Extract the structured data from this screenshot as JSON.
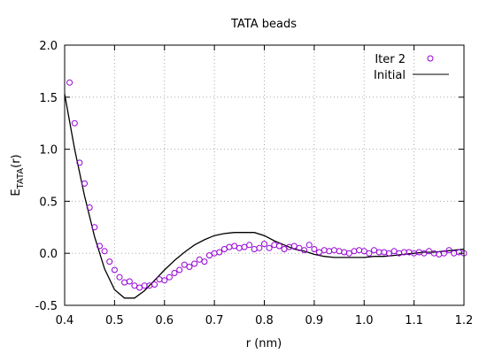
{
  "chart_data": {
    "type": "line",
    "title": "TATA beads",
    "xlabel": "r (nm)",
    "ylabel": {
      "main": "E",
      "sub": "TATA",
      "suffix": "(r)"
    },
    "xlim": [
      0.4,
      1.2
    ],
    "ylim": [
      -0.5,
      2.0
    ],
    "xticks": [
      "0.4",
      "0.5",
      "0.6",
      "0.7",
      "0.8",
      "0.9",
      "1.0",
      "1.1",
      "1.2"
    ],
    "yticks": [
      "-0.5",
      "0.0",
      "0.5",
      "1.0",
      "1.5",
      "2.0"
    ],
    "grid": true,
    "legend_position": "top-right",
    "series": [
      {
        "name": "Iter 2",
        "style": "points",
        "marker": "open-circle",
        "color": "#9400d3",
        "x": [
          0.41,
          0.42,
          0.43,
          0.44,
          0.45,
          0.46,
          0.47,
          0.48,
          0.49,
          0.5,
          0.51,
          0.52,
          0.53,
          0.54,
          0.55,
          0.56,
          0.57,
          0.58,
          0.59,
          0.6,
          0.61,
          0.62,
          0.63,
          0.64,
          0.65,
          0.66,
          0.67,
          0.68,
          0.69,
          0.7,
          0.71,
          0.72,
          0.73,
          0.74,
          0.75,
          0.76,
          0.77,
          0.78,
          0.79,
          0.8,
          0.81,
          0.82,
          0.83,
          0.84,
          0.85,
          0.86,
          0.87,
          0.88,
          0.89,
          0.9,
          0.91,
          0.92,
          0.93,
          0.94,
          0.95,
          0.96,
          0.97,
          0.98,
          0.99,
          1.0,
          1.01,
          1.02,
          1.03,
          1.04,
          1.05,
          1.06,
          1.07,
          1.08,
          1.09,
          1.1,
          1.11,
          1.12,
          1.13,
          1.14,
          1.15,
          1.16,
          1.17,
          1.18,
          1.19,
          1.2
        ],
        "y": [
          1.64,
          1.25,
          0.87,
          0.67,
          0.44,
          0.25,
          0.07,
          0.02,
          -0.08,
          -0.16,
          -0.23,
          -0.28,
          -0.27,
          -0.31,
          -0.33,
          -0.31,
          -0.31,
          -0.3,
          -0.25,
          -0.26,
          -0.23,
          -0.19,
          -0.16,
          -0.11,
          -0.13,
          -0.1,
          -0.06,
          -0.08,
          -0.02,
          0.0,
          0.01,
          0.04,
          0.06,
          0.07,
          0.05,
          0.06,
          0.08,
          0.04,
          0.05,
          0.09,
          0.05,
          0.08,
          0.07,
          0.04,
          0.06,
          0.07,
          0.05,
          0.03,
          0.08,
          0.04,
          0.01,
          0.03,
          0.02,
          0.03,
          0.02,
          0.01,
          0.0,
          0.02,
          0.03,
          0.02,
          0.0,
          0.03,
          0.01,
          0.01,
          0.0,
          0.02,
          0.0,
          0.01,
          0.01,
          0.0,
          0.01,
          0.0,
          0.02,
          0.0,
          -0.01,
          0.0,
          0.03,
          0.0,
          0.01,
          0.0
        ]
      },
      {
        "name": "Initial",
        "style": "line",
        "color": "#000000",
        "x": [
          0.4,
          0.42,
          0.44,
          0.46,
          0.48,
          0.5,
          0.52,
          0.54,
          0.56,
          0.58,
          0.6,
          0.62,
          0.64,
          0.66,
          0.68,
          0.7,
          0.72,
          0.74,
          0.76,
          0.78,
          0.8,
          0.82,
          0.84,
          0.86,
          0.88,
          0.9,
          0.92,
          0.94,
          0.96,
          0.98,
          1.0,
          1.02,
          1.04,
          1.06,
          1.08,
          1.1,
          1.12,
          1.14,
          1.16,
          1.18,
          1.2
        ],
        "y": [
          1.53,
          1.0,
          0.55,
          0.16,
          -0.15,
          -0.35,
          -0.43,
          -0.43,
          -0.36,
          -0.26,
          -0.16,
          -0.07,
          0.01,
          0.08,
          0.13,
          0.17,
          0.19,
          0.2,
          0.2,
          0.2,
          0.17,
          0.12,
          0.08,
          0.04,
          0.02,
          -0.01,
          -0.03,
          -0.04,
          -0.04,
          -0.04,
          -0.04,
          -0.03,
          -0.03,
          -0.02,
          -0.01,
          0.0,
          0.01,
          0.01,
          0.02,
          0.03,
          0.04
        ]
      }
    ]
  }
}
